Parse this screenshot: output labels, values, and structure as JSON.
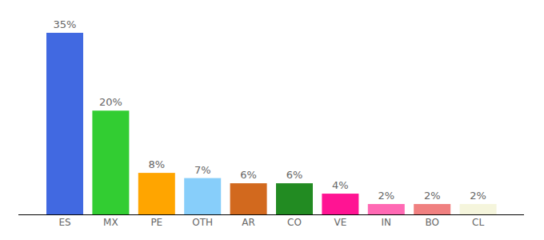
{
  "chart_data": {
    "type": "bar",
    "categories": [
      "ES",
      "MX",
      "PE",
      "OTH",
      "AR",
      "CO",
      "VE",
      "IN",
      "BO",
      "CL"
    ],
    "values": [
      35,
      20,
      8,
      7,
      6,
      6,
      4,
      2,
      2,
      2
    ],
    "value_labels": [
      "35%",
      "20%",
      "8%",
      "7%",
      "6%",
      "6%",
      "4%",
      "2%",
      "2%",
      "2%"
    ],
    "colors": [
      "#4169e1",
      "#32cd32",
      "#ffa500",
      "#87cefa",
      "#d2691e",
      "#228b22",
      "#ff1493",
      "#ff69b4",
      "#f08080",
      "#f5f5dc"
    ],
    "ylim": [
      0,
      35
    ],
    "data_labels": true,
    "tick_labels": "x",
    "grid": false
  }
}
